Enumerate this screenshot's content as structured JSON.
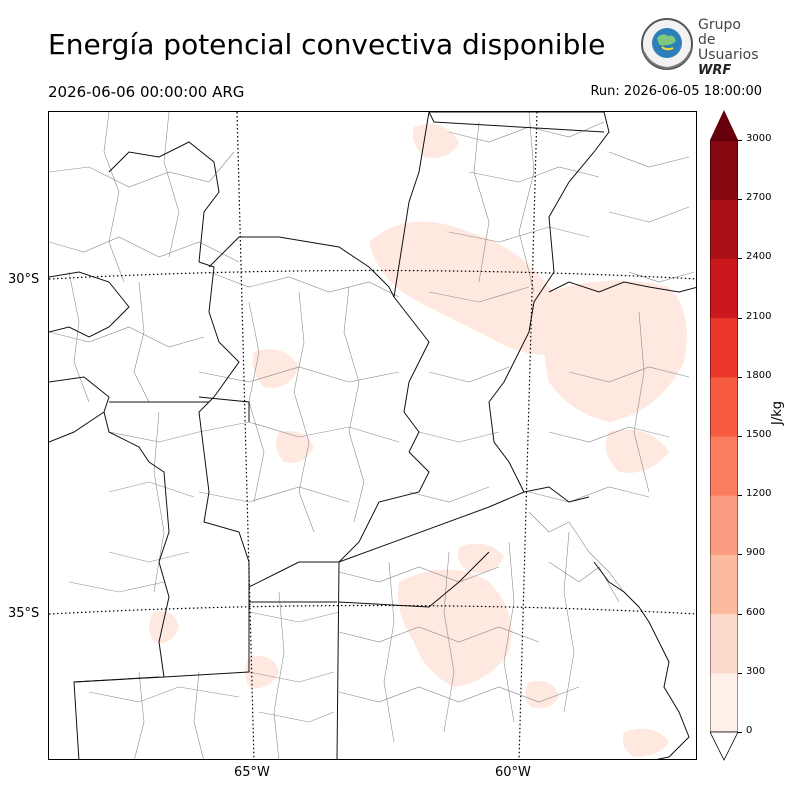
{
  "header": {
    "title": "Energía potencial convectiva disponible",
    "valid_time": "2026-06-06 00:00:00 ARG",
    "run_time": "Run: 2026-06-05 18:00:00"
  },
  "logo": {
    "line1": "Grupo de",
    "line2": "Usuarios",
    "line3": "WRF"
  },
  "map": {
    "latitude_labels": [
      "30°S",
      "35°S"
    ],
    "longitude_labels": [
      "65°W",
      "60°W"
    ],
    "land_color": "#ffffff",
    "boundary_color": "#000000",
    "county_color": "#888888"
  },
  "colorbar": {
    "unit": "J/kg",
    "levels": [
      0,
      300,
      600,
      900,
      1200,
      1500,
      1800,
      2100,
      2400,
      2700,
      3000
    ],
    "tick_labels": [
      "0",
      "300",
      "600",
      "900",
      "1200",
      "1500",
      "1800",
      "2100",
      "2400",
      "2700",
      "3000"
    ],
    "colors": [
      "#fff0e9",
      "#fdd9cb",
      "#fcbba1",
      "#fc9d81",
      "#fb7d5d",
      "#f75b40",
      "#eb362a",
      "#cb181d",
      "#aa1016",
      "#860811"
    ],
    "under_color": "#ffffff",
    "over_color": "#67000d",
    "extend": "both"
  }
}
